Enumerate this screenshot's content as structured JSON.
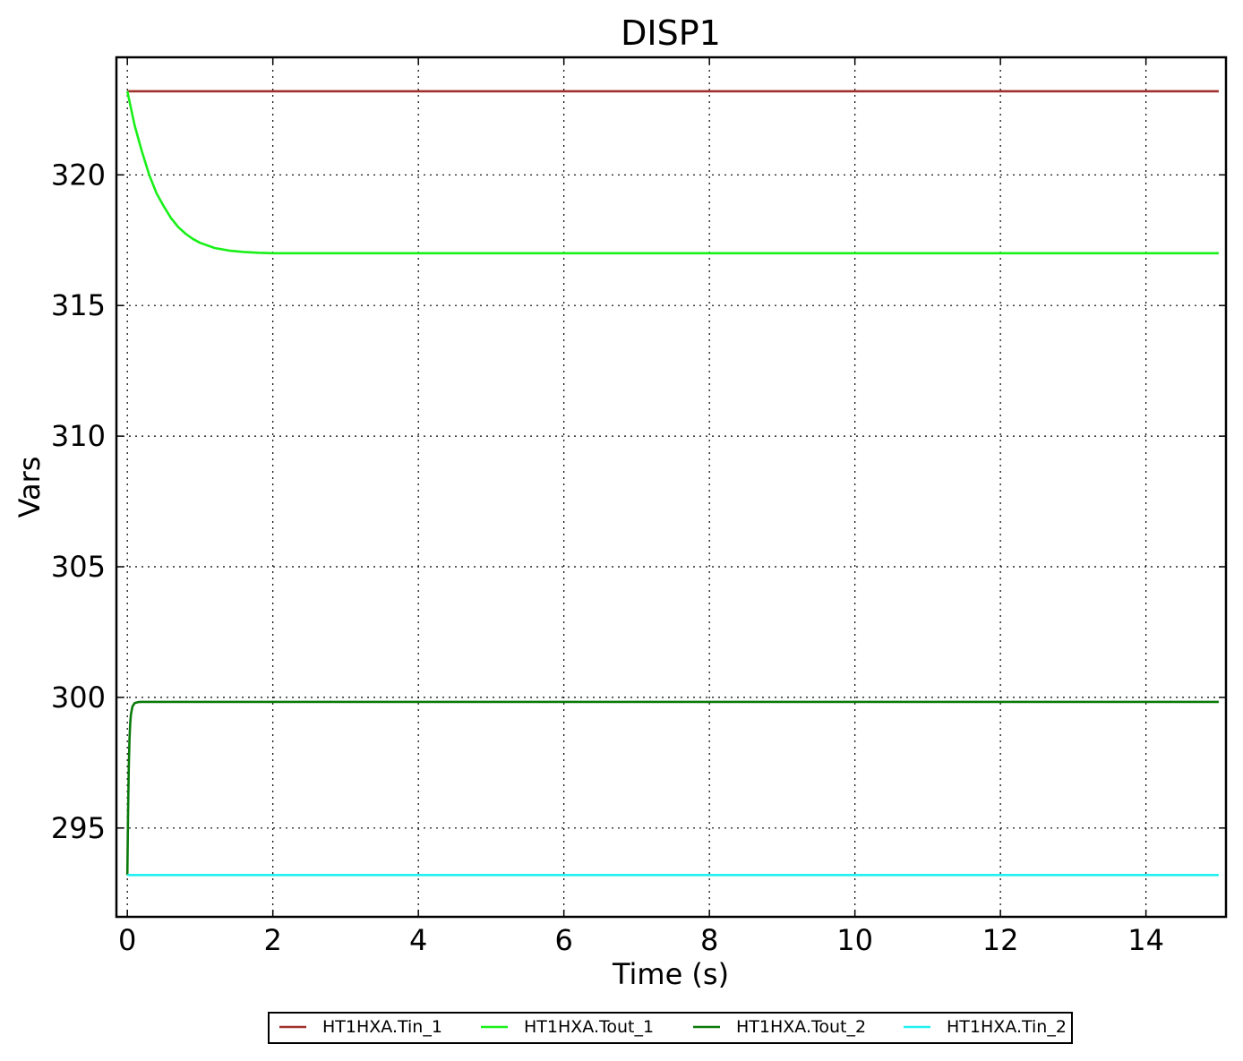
{
  "chart_data": {
    "type": "line",
    "title": "DISP1",
    "xlabel": "Time (s)",
    "ylabel": "Vars",
    "xlim": [
      -0.15,
      15.1
    ],
    "ylim": [
      291.6,
      324.5
    ],
    "xticks": [
      0,
      2,
      4,
      6,
      8,
      10,
      12,
      14
    ],
    "yticks": [
      295,
      300,
      305,
      310,
      315,
      320
    ],
    "grid": true,
    "legend_position": "bottom-center",
    "series": [
      {
        "name": "HT1HXA.Tin_1",
        "color": "#a0302c",
        "x": [
          0,
          15
        ],
        "y": [
          323.2,
          323.2
        ]
      },
      {
        "name": "HT1HXA.Tout_1",
        "color": "#18f018",
        "x": [
          0,
          0.1,
          0.2,
          0.3,
          0.4,
          0.5,
          0.6,
          0.7,
          0.8,
          0.9,
          1.0,
          1.2,
          1.4,
          1.6,
          1.8,
          2.0,
          2.5,
          3.0,
          4.0,
          6.0,
          8.0,
          10.0,
          12.0,
          14.0,
          15.0
        ],
        "y": [
          323.2,
          321.9,
          320.9,
          320.0,
          319.3,
          318.8,
          318.35,
          318.0,
          317.75,
          317.55,
          317.4,
          317.2,
          317.1,
          317.05,
          317.02,
          317.0,
          317.0,
          317.0,
          317.0,
          317.0,
          317.0,
          317.0,
          317.0,
          317.0,
          317.0
        ]
      },
      {
        "name": "HT1HXA.Tout_2",
        "color": "#0a7a0a",
        "x": [
          0,
          0.01,
          0.02,
          0.03,
          0.04,
          0.05,
          0.07,
          0.1,
          0.15,
          0.2,
          0.3,
          1.0,
          5.0,
          10.0,
          15.0
        ],
        "y": [
          293.2,
          295.6,
          297.3,
          298.4,
          299.0,
          299.35,
          299.65,
          299.78,
          299.82,
          299.83,
          299.83,
          299.83,
          299.83,
          299.83,
          299.83
        ]
      },
      {
        "name": "HT1HXA.Tin_2",
        "color": "#22f0f0",
        "x": [
          0,
          15
        ],
        "y": [
          293.2,
          293.2
        ]
      }
    ]
  }
}
